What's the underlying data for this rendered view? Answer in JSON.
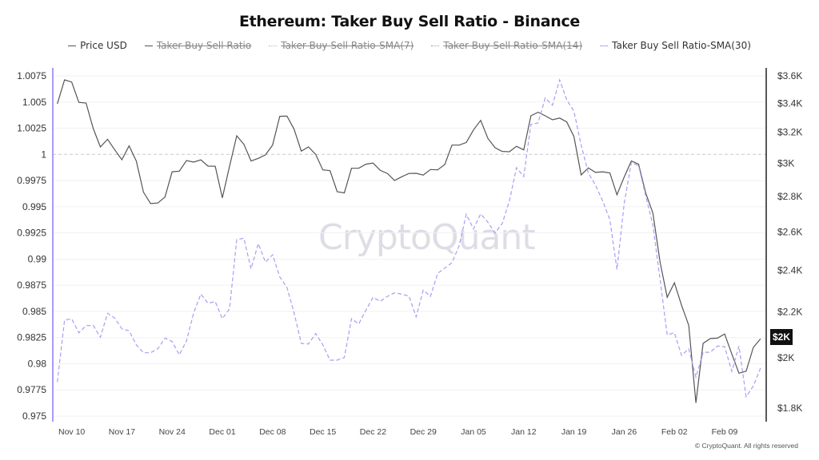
{
  "chart_data": {
    "type": "line",
    "title": "Ethereum: Taker Buy Sell Ratio - Binance",
    "legend": [
      {
        "name": "Price USD",
        "enabled": true,
        "style": "solid",
        "color": "#555555"
      },
      {
        "name": "Taker Buy Sell Ratio",
        "enabled": false,
        "style": "solid",
        "color": "#555555"
      },
      {
        "name": "Taker Buy Sell Ratio-SMA(7)",
        "enabled": false,
        "style": "dotted",
        "color": "#bbbbbb"
      },
      {
        "name": "Taker Buy Sell Ratio-SMA(14)",
        "enabled": false,
        "style": "dotted",
        "color": "#999999"
      },
      {
        "name": "Taker Buy Sell Ratio-SMA(30)",
        "enabled": true,
        "style": "dashed",
        "color": "#a99cf5"
      }
    ],
    "legend_position": "top",
    "x": [
      "Nov 08",
      "Nov 09",
      "Nov 10",
      "Nov 11",
      "Nov 12",
      "Nov 13",
      "Nov 14",
      "Nov 15",
      "Nov 16",
      "Nov 17",
      "Nov 18",
      "Nov 19",
      "Nov 20",
      "Nov 21",
      "Nov 22",
      "Nov 23",
      "Nov 24",
      "Nov 25",
      "Nov 26",
      "Nov 27",
      "Nov 28",
      "Nov 29",
      "Nov 30",
      "Dec 01",
      "Dec 02",
      "Dec 03",
      "Dec 04",
      "Dec 05",
      "Dec 06",
      "Dec 07",
      "Dec 08",
      "Dec 09",
      "Dec 10",
      "Dec 11",
      "Dec 12",
      "Dec 13",
      "Dec 14",
      "Dec 15",
      "Dec 16",
      "Dec 17",
      "Dec 18",
      "Dec 19",
      "Dec 20",
      "Dec 21",
      "Dec 22",
      "Dec 23",
      "Dec 24",
      "Dec 25",
      "Dec 26",
      "Dec 27",
      "Dec 28",
      "Dec 29",
      "Dec 30",
      "Dec 31",
      "Jan 01",
      "Jan 02",
      "Jan 03",
      "Jan 04",
      "Jan 05",
      "Jan 06",
      "Jan 07",
      "Jan 08",
      "Jan 09",
      "Jan 10",
      "Jan 11",
      "Jan 12",
      "Jan 13",
      "Jan 14",
      "Jan 15",
      "Jan 16",
      "Jan 17",
      "Jan 18",
      "Jan 19",
      "Jan 20",
      "Jan 21",
      "Jan 22",
      "Jan 23",
      "Jan 24",
      "Jan 25",
      "Jan 26",
      "Jan 27",
      "Jan 28",
      "Jan 29",
      "Jan 30",
      "Jan 31",
      "Feb 01",
      "Feb 02",
      "Feb 03",
      "Feb 04",
      "Feb 05",
      "Feb 06",
      "Feb 07",
      "Feb 08",
      "Feb 09",
      "Feb 10",
      "Feb 11",
      "Feb 12",
      "Feb 13",
      "Feb 14"
    ],
    "x_ticks": [
      "Nov 10",
      "Nov 17",
      "Nov 24",
      "Dec 01",
      "Dec 08",
      "Dec 15",
      "Dec 22",
      "Dec 29",
      "Jan 05",
      "Jan 12",
      "Jan 19",
      "Jan 26",
      "Feb 02",
      "Feb 09"
    ],
    "series": [
      {
        "name": "Price USD",
        "axis": "right",
        "values": [
          3396,
          3570,
          3554,
          3406,
          3402,
          3225,
          3104,
          3154,
          3085,
          3022,
          3111,
          3014,
          2824,
          2758,
          2761,
          2796,
          2947,
          2951,
          3017,
          3007,
          3021,
          2982,
          2981,
          2791,
          2981,
          3177,
          3121,
          3014,
          3031,
          3053,
          3116,
          3309,
          3310,
          3221,
          3077,
          3104,
          3056,
          2959,
          2954,
          2827,
          2820,
          2969,
          2969,
          2994,
          3001,
          2956,
          2937,
          2894,
          2917,
          2937,
          2938,
          2927,
          2961,
          2959,
          2992,
          3116,
          3116,
          3133,
          3216,
          3281,
          3160,
          3099,
          3075,
          3073,
          3108,
          3085,
          3312,
          3337,
          3312,
          3285,
          3297,
          3270,
          3172,
          2928,
          2971,
          2943,
          2947,
          2940,
          2809,
          2915,
          3014,
          2994,
          2820,
          2704,
          2441,
          2268,
          2338,
          2230,
          2140,
          1820,
          2060,
          2081,
          2083,
          2101,
          2015,
          1936,
          1944,
          2043,
          2080
        ]
      },
      {
        "name": "Taker Buy Sell Ratio-SMA(30)",
        "axis": "left",
        "values": [
          0.97826,
          0.98416,
          0.98429,
          0.98296,
          0.98364,
          0.98367,
          0.98253,
          0.98482,
          0.98436,
          0.98334,
          0.98314,
          0.98181,
          0.98105,
          0.98105,
          0.98143,
          0.98245,
          0.98212,
          0.98085,
          0.98219,
          0.98486,
          0.98665,
          0.98578,
          0.98593,
          0.98431,
          0.98525,
          0.99186,
          0.99199,
          0.98906,
          0.99148,
          0.9897,
          0.99041,
          0.9883,
          0.98728,
          0.98486,
          0.98194,
          0.98189,
          0.98288,
          0.98181,
          0.98034,
          0.98034,
          0.98059,
          0.98431,
          0.9838,
          0.98512,
          0.98634,
          0.98596,
          0.98644,
          0.98677,
          0.98665,
          0.98647,
          0.98448,
          0.98703,
          0.98644,
          0.98863,
          0.98914,
          0.98965,
          0.99127,
          0.99428,
          0.99288,
          0.99432,
          0.99352,
          0.99249,
          0.99339,
          0.99555,
          0.99873,
          0.99789,
          1.00287,
          1.003,
          1.00539,
          1.0047,
          1.00712,
          1.00521,
          1.00412,
          1.00089,
          0.99822,
          0.99707,
          0.99555,
          0.99377,
          0.98901,
          0.99529,
          0.99924,
          0.9989,
          0.99606,
          0.99326,
          0.98805,
          0.98276,
          0.98296,
          0.9808,
          0.98143,
          0.97872,
          0.9811,
          0.9811,
          0.98169,
          0.98164,
          0.97927,
          0.98169,
          0.97685,
          0.97788,
          0.97958
        ]
      }
    ],
    "left_axis": {
      "ylim": [
        0.975,
        1.0075
      ],
      "ticks": [
        1.0075,
        1.005,
        1.0025,
        1,
        0.9975,
        0.995,
        0.9925,
        0.99,
        0.9875,
        0.985,
        0.9825,
        0.98,
        0.9775,
        0.975
      ],
      "tick_labels": [
        "1.0075",
        "1.005",
        "1.0025",
        "1",
        "0.9975",
        "0.995",
        "0.9925",
        "0.99",
        "0.9875",
        "0.985",
        "0.9825",
        "0.98",
        "0.9775",
        "0.975"
      ],
      "reference_line": 1,
      "color": "#a99cf5"
    },
    "right_axis": {
      "scale": "log",
      "ylim": [
        1800,
        3600
      ],
      "ticks": [
        3600,
        3400,
        3200,
        3000,
        2800,
        2600,
        2400,
        2200,
        2000,
        1800
      ],
      "tick_labels": [
        "$3.6K",
        "$3.4K",
        "$3.2K",
        "$3K",
        "$2.8K",
        "$2.6K",
        "$2.4K",
        "$2.2K",
        "$2K",
        "$1.8K"
      ],
      "last_value_label": "$2K"
    },
    "grid": true
  },
  "watermark": "CryptoQuant",
  "footer": "© CryptoQuant. All rights reserved"
}
